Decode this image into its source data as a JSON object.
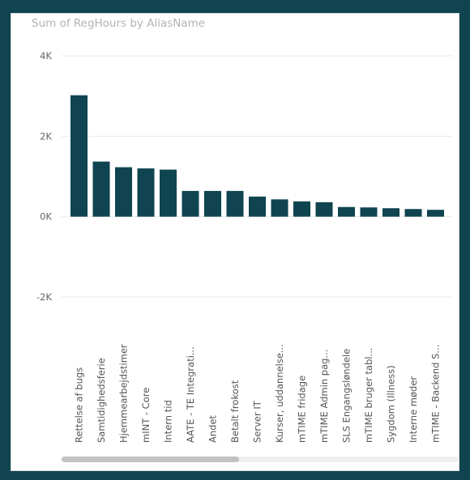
{
  "chart_data": {
    "type": "bar",
    "title": "Sum of RegHours by AliasName",
    "xlabel": "",
    "ylabel": "",
    "ylim": [
      -2000,
      4000
    ],
    "yticks": [
      {
        "value": 4000,
        "label": "4K"
      },
      {
        "value": 2000,
        "label": "2K"
      },
      {
        "value": 0,
        "label": "0K"
      },
      {
        "value": -2000,
        "label": "-2K"
      }
    ],
    "grid": true,
    "categories": [
      "Rettelse af bugs",
      "Samtidighedsferie",
      "Hjemmearbejdstimer",
      "mINT - Core",
      "Intern tid",
      "AATE - TE Integrati...",
      "Andet",
      "Betalt frokost",
      "Server IT",
      "Kurser, uddannelse...",
      "mTIME fridage",
      "mTIME Admin pag...",
      "SLS Engangsløndele",
      "mTIME bruger tabl...",
      "Sygdom (Illness)",
      "Interne møder",
      "mTIME - Backend S..."
    ],
    "values": [
      3020,
      1370,
      1230,
      1200,
      1170,
      640,
      640,
      640,
      500,
      430,
      380,
      360,
      240,
      230,
      210,
      190,
      170
    ],
    "bar_color": "#0f4450"
  }
}
